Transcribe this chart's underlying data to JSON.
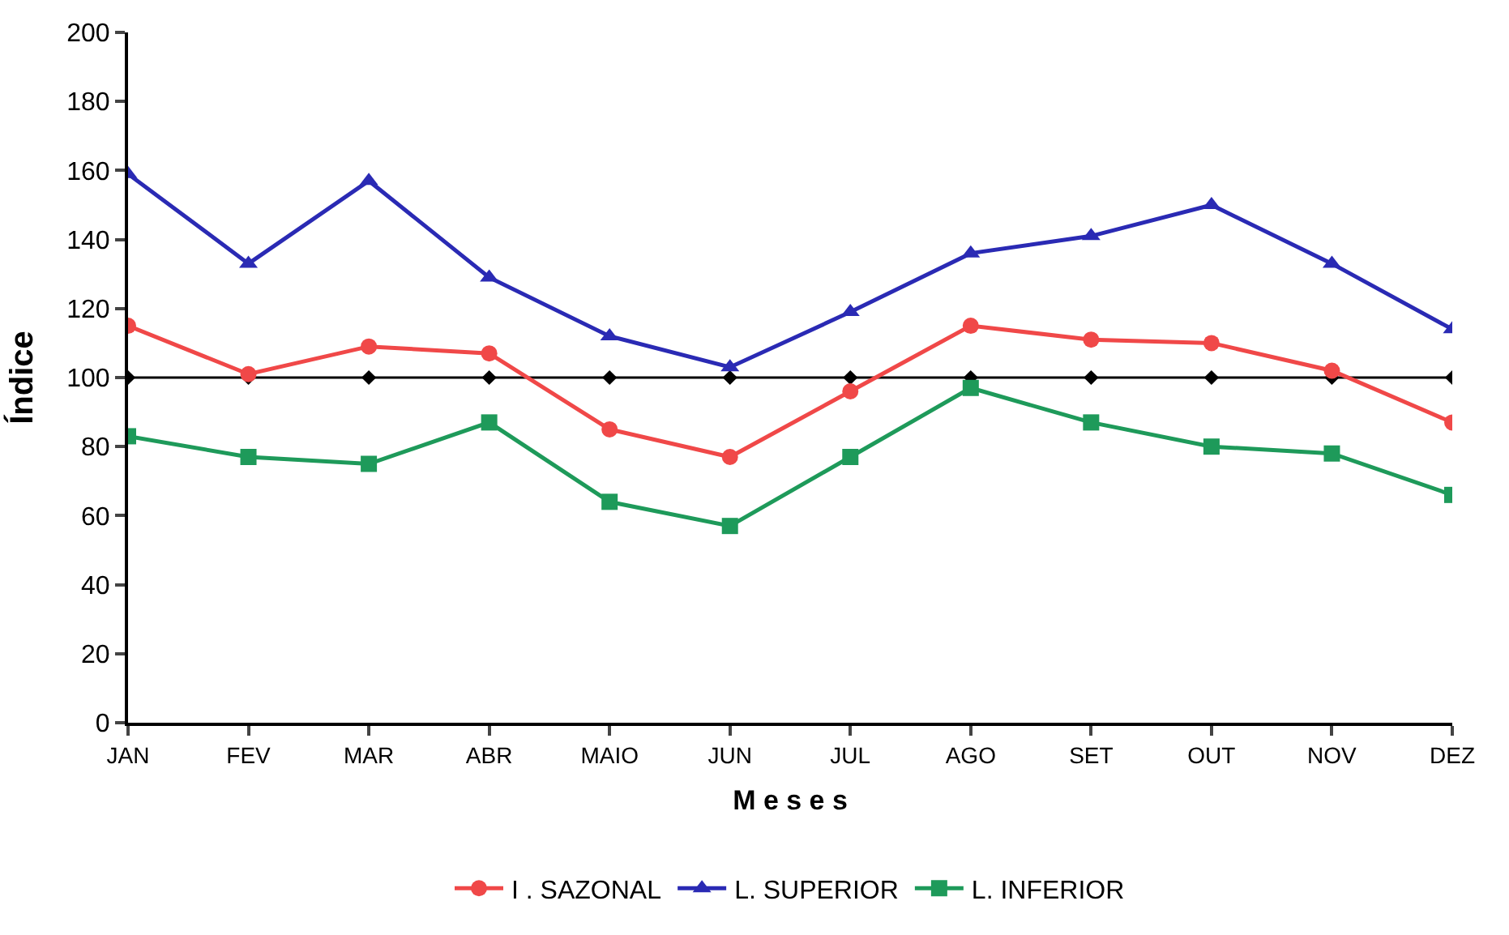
{
  "chart_data": {
    "type": "line",
    "xlabel": "M e s e s",
    "ylabel": "Índice",
    "categories": [
      "JAN",
      "FEV",
      "MAR",
      "ABR",
      "MAIO",
      "JUN",
      "JUL",
      "AGO",
      "SET",
      "OUT",
      "NOV",
      "DEZ"
    ],
    "series": [
      {
        "color": "#000000",
        "marker": "diamond",
        "values": [
          100,
          100,
          100,
          100,
          100,
          100,
          100,
          100,
          100,
          100,
          100,
          100
        ]
      },
      {
        "name": "I . SAZONAL",
        "color": "#f04848",
        "marker": "circle",
        "values": [
          115,
          101,
          109,
          107,
          85,
          77,
          96,
          115,
          111,
          110,
          102,
          87
        ]
      },
      {
        "name": "L. SUPERIOR",
        "color": "#2a2ab4",
        "marker": "triangle",
        "values": [
          159,
          133,
          157,
          129,
          112,
          103,
          119,
          136,
          141,
          150,
          133,
          114
        ]
      },
      {
        "name": "L. INFERIOR",
        "color": "#1e9a5a",
        "marker": "square",
        "values": [
          83,
          77,
          75,
          87,
          64,
          57,
          77,
          97,
          87,
          80,
          78,
          66
        ]
      }
    ],
    "ylim": [
      0,
      200
    ],
    "yticks": [
      0,
      20,
      40,
      60,
      80,
      100,
      120,
      140,
      160,
      180,
      200
    ],
    "legend": "bottom",
    "line_style": "solid"
  }
}
